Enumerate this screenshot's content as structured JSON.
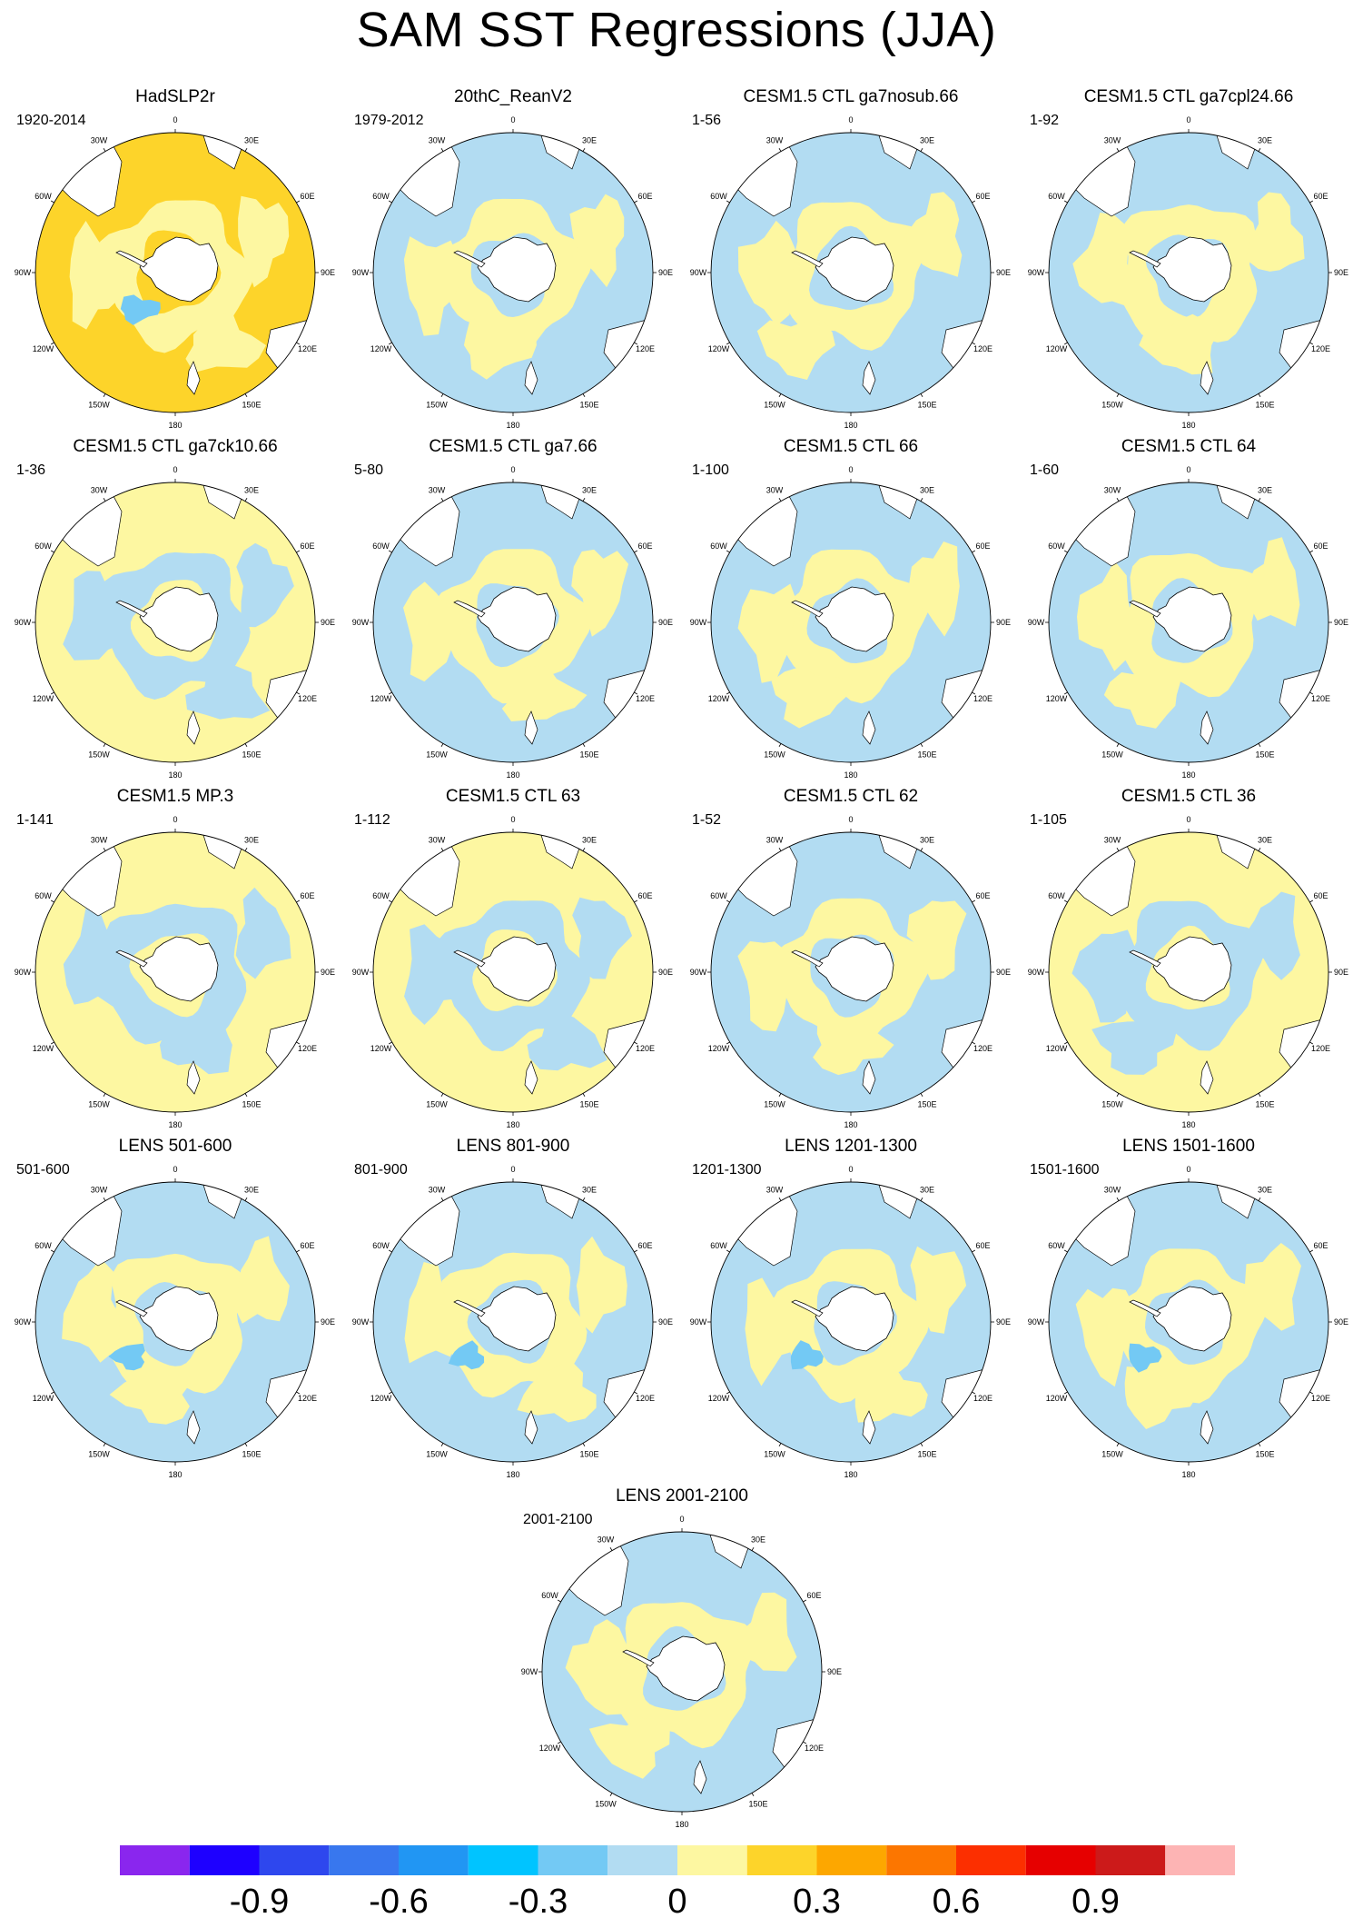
{
  "title": "SAM SST Regressions (JJA)",
  "longitude_labels": [
    "0",
    "30E",
    "60E",
    "90E",
    "120E",
    "150E",
    "180",
    "150W",
    "120W",
    "90W",
    "60W",
    "30W"
  ],
  "panels": [
    {
      "title": "HadSLP2r",
      "period": "1920-2014",
      "dominant_level": 0.4
    },
    {
      "title": "20thC_ReanV2",
      "period": "1979-2012",
      "dominant_level": 0.0
    },
    {
      "title": "CESM1.5 CTL ga7nosub.66",
      "period": "1-56",
      "dominant_level": 0.0
    },
    {
      "title": "CESM1.5 CTL ga7cpl24.66",
      "period": "1-92",
      "dominant_level": 0.0
    },
    {
      "title": "CESM1.5 CTL ga7ck10.66",
      "period": "1-36",
      "dominant_level": 0.1
    },
    {
      "title": "CESM1.5 CTL ga7.66",
      "period": "5-80",
      "dominant_level": 0.0
    },
    {
      "title": "CESM1.5 CTL 66",
      "period": "1-100",
      "dominant_level": 0.0
    },
    {
      "title": "CESM1.5 CTL 64",
      "period": "1-60",
      "dominant_level": 0.0
    },
    {
      "title": "CESM1.5 MP.3",
      "period": "1-141",
      "dominant_level": 0.1
    },
    {
      "title": "CESM1.5 CTL 63",
      "period": "1-112",
      "dominant_level": 0.1
    },
    {
      "title": "CESM1.5 CTL 62",
      "period": "1-52",
      "dominant_level": 0.0
    },
    {
      "title": "CESM1.5 CTL 36",
      "period": "1-105",
      "dominant_level": 0.1
    },
    {
      "title": "LENS 501-600",
      "period": "501-600",
      "dominant_level": 0.0
    },
    {
      "title": "LENS 801-900",
      "period": "801-900",
      "dominant_level": 0.0
    },
    {
      "title": "LENS 1201-1300",
      "period": "1201-1300",
      "dominant_level": 0.0
    },
    {
      "title": "LENS 1501-1600",
      "period": "1501-1600",
      "dominant_level": 0.0
    },
    {
      "title": "LENS 2001-2100",
      "period": "2001-2100",
      "dominant_level": 0.0
    }
  ],
  "colorbar": {
    "colors": [
      "#8a26ee",
      "#1e00ff",
      "#2e47ee",
      "#3877ee",
      "#2196f3",
      "#00c4ff",
      "#73c9f4",
      "#b2dcf2",
      "#fdf7a1",
      "#fdd42a",
      "#fda700",
      "#fc7600",
      "#fc2f00",
      "#e60000",
      "#cc1a1a",
      "#fdb4b4"
    ],
    "tick_labels": [
      "-0.9",
      "-0.6",
      "-0.3",
      "0",
      "0.3",
      "0.6",
      "0.9"
    ]
  },
  "colors": {
    "land": "#ffffff",
    "coastline": "#000000",
    "positive": "#fdf7a1",
    "negative": "#b2dcf2",
    "strong_positive": "#fdd42a",
    "moderate_negative": "#73c9f4"
  }
}
